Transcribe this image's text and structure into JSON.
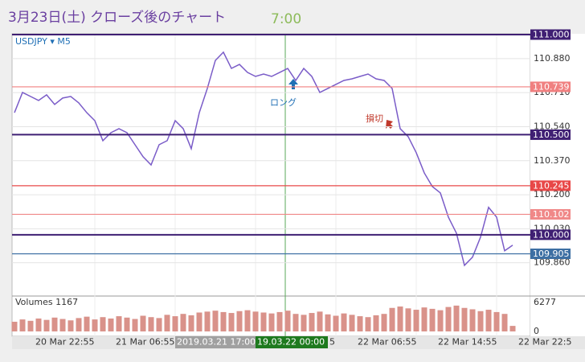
{
  "header": {
    "title": "3月23日(土) クローズ後のチャート",
    "time": "7:00"
  },
  "chart_data": [
    {
      "type": "line",
      "symbol": "USDJPY ▾ M5",
      "color": "#7a5cc8",
      "values": [
        110.61,
        110.711,
        110.691,
        110.671,
        110.699,
        110.651,
        110.683,
        110.691,
        110.659,
        110.61,
        110.57,
        110.47,
        110.51,
        110.53,
        110.51,
        110.45,
        110.39,
        110.349,
        110.45,
        110.47,
        110.57,
        110.53,
        110.43,
        110.61,
        110.731,
        110.871,
        110.912,
        110.831,
        110.851,
        110.811,
        110.791,
        110.803,
        110.791,
        110.811,
        110.831,
        110.771,
        110.831,
        110.791,
        110.711,
        110.731,
        110.751,
        110.771,
        110.779,
        110.791,
        110.803,
        110.779,
        110.771,
        110.731,
        110.53,
        110.49,
        110.41,
        110.309,
        110.241,
        110.209,
        110.088,
        110.008,
        109.847,
        109.888,
        109.988,
        110.137,
        110.088,
        109.92,
        109.948
      ],
      "ylim": [
        109.71,
        111.0
      ],
      "yticks": [
        {
          "value": 110.88,
          "label": "110.880"
        },
        {
          "value": 110.71,
          "label": "110.710"
        },
        {
          "value": 110.54,
          "label": "110.540"
        },
        {
          "value": 110.37,
          "label": "110.370"
        },
        {
          "value": 110.2,
          "label": "110.200"
        },
        {
          "value": 110.03,
          "label": "110.030"
        },
        {
          "value": 109.86,
          "label": "109.860"
        }
      ],
      "grid": true,
      "levels": [
        {
          "value": 111.0,
          "label": "111.000",
          "color": "#3f1f73"
        },
        {
          "value": 110.739,
          "label": "110.739",
          "color": "#f08080"
        },
        {
          "value": 110.5,
          "label": "110.500",
          "color": "#3f1f73"
        },
        {
          "value": 110.245,
          "label": "110.245",
          "color": "#e84848"
        },
        {
          "value": 110.102,
          "label": "110.102",
          "color": "#f08888"
        },
        {
          "value": 110.0,
          "label": "110.000",
          "color": "#3f1f73"
        },
        {
          "value": 109.905,
          "label": "109.905",
          "color": "#3d6fa3"
        }
      ],
      "annotations": [
        {
          "text": "ロング",
          "color": "#1f6fb5"
        },
        {
          "text": "損切",
          "color": "#c0392b"
        }
      ],
      "x_labels": [
        "20 Mar 22:55",
        "21 Mar 06:55",
        "2019.03.21 17:00",
        "19.03.22 00:00",
        "5",
        "22 Mar 06:55",
        "22 Mar 14:55",
        "22 Mar 22:5"
      ]
    },
    {
      "type": "bar",
      "title": "Volumes 1167",
      "color": "#d9928a",
      "values": [
        2100,
        2600,
        2300,
        2800,
        2500,
        3000,
        2700,
        2400,
        2900,
        3200,
        2600,
        3100,
        2800,
        3300,
        3000,
        2700,
        3400,
        3100,
        2900,
        3600,
        3300,
        3800,
        3500,
        4100,
        4300,
        4500,
        4200,
        4000,
        4400,
        4600,
        4300,
        4100,
        3900,
        4200,
        4500,
        3800,
        3600,
        4000,
        4300,
        3700,
        3400,
        3900,
        3600,
        3300,
        3100,
        3500,
        3800,
        5100,
        5400,
        5000,
        4700,
        5200,
        4900,
        4600,
        5300,
        5600,
        5100,
        4800,
        4400,
        4700,
        4200,
        3800,
        1200
      ],
      "ylim": [
        0,
        6277
      ],
      "yticks": [
        0,
        6277
      ]
    }
  ]
}
